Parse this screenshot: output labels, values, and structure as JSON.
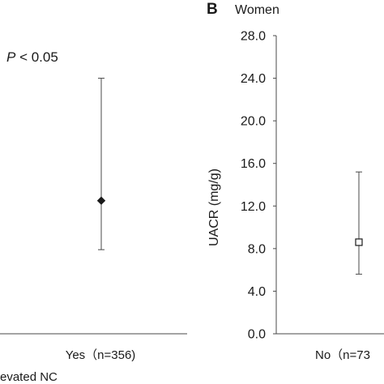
{
  "chart_data": [
    {
      "panel": "A",
      "type": "scatter",
      "annotation": "P < 0.05",
      "annotation_p": "P",
      "annotation_rest": " < 0.05",
      "x_title_partial": "evated NC",
      "categories": [
        "Yes（n=356)"
      ],
      "points": [
        {
          "category": "Yes（n=356)",
          "value": 12.5,
          "lower": 7.9,
          "upper": 24.0,
          "marker": "filled-diamond"
        }
      ],
      "ylim": [
        0,
        28
      ]
    },
    {
      "panel": "B",
      "type": "scatter",
      "panel_label": "B",
      "title": "Women",
      "ylabel": "UACR (mg/g)",
      "ylim": [
        0,
        28
      ],
      "yticks": [
        "0.0",
        "4.0",
        "8.0",
        "12.0",
        "16.0",
        "20.0",
        "24.0",
        "28.0"
      ],
      "categories": [
        "No（n=73"
      ],
      "points": [
        {
          "category": "No（n=73",
          "value": 8.6,
          "lower": 5.6,
          "upper": 15.2,
          "marker": "open-square"
        }
      ]
    }
  ],
  "colors": {
    "axis": "#4a4a4a",
    "text": "#1a1a1a",
    "marker": "#1a1a1a"
  }
}
